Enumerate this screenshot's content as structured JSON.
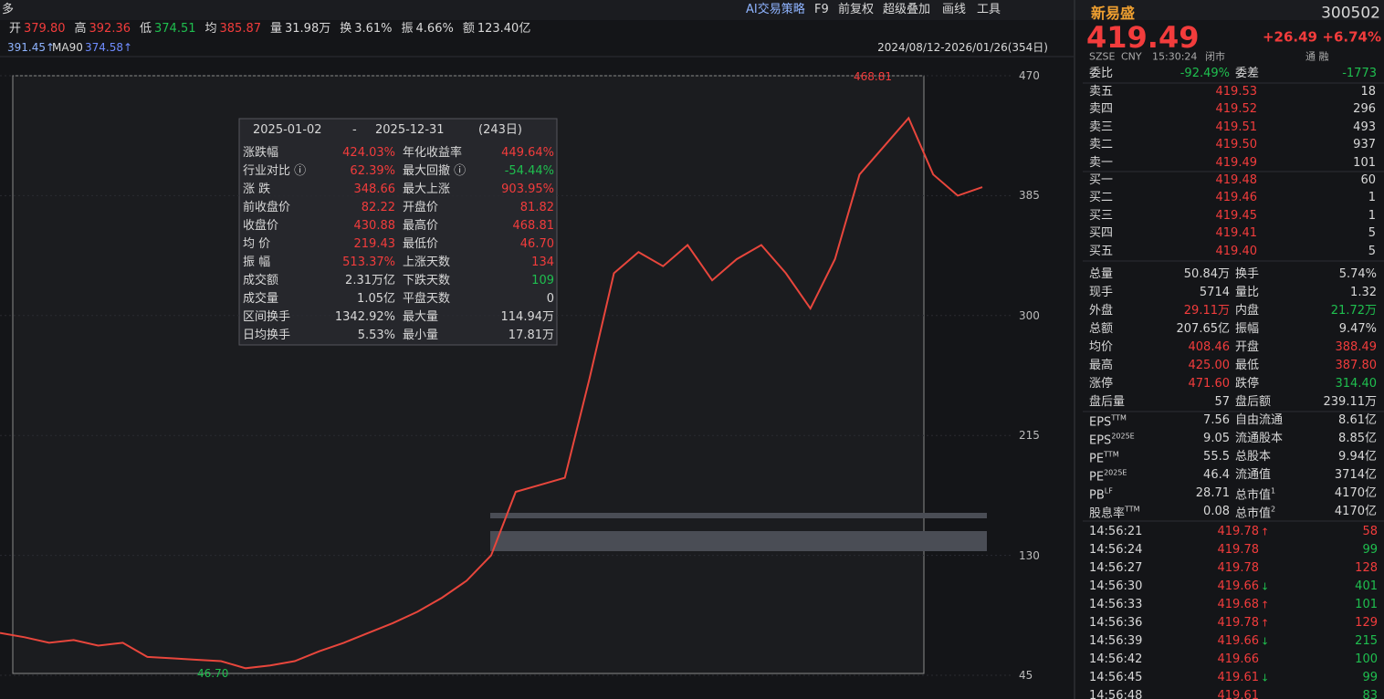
{
  "toolbar": {
    "left": "多",
    "buttons": [
      "AI交易策略",
      "F9",
      "前复权",
      "超级叠加",
      "画线",
      "工具"
    ]
  },
  "quote_bar": [
    {
      "label": "开",
      "value": "379.80",
      "color": "#f23c3c"
    },
    {
      "label": "高",
      "value": "392.36",
      "color": "#f23c3c"
    },
    {
      "label": "低",
      "value": "374.51",
      "color": "#1fbf4f"
    },
    {
      "label": "均",
      "value": "385.87",
      "color": "#f23c3c"
    },
    {
      "label": "量",
      "value": "31.98万"
    },
    {
      "label": "换",
      "value": "3.61%"
    },
    {
      "label": "振",
      "value": "4.66%"
    },
    {
      "label": "额",
      "value": "123.40亿"
    }
  ],
  "ma_bar": {
    "ma_prev": "391.45↑",
    "ma90_label": "MA90",
    "ma90": "374.58↑",
    "range": "2024/08/12-2026/01/26(354日)"
  },
  "price_chart": {
    "ylim": [
      45,
      470
    ],
    "yticks": [
      470,
      385,
      300,
      215,
      130,
      45
    ],
    "high_label": "468.81",
    "low_label": "46.70",
    "closes": [
      75,
      72,
      68,
      70,
      66,
      68,
      58,
      57,
      56,
      55,
      50,
      52,
      55,
      62,
      68,
      75,
      82,
      90,
      100,
      112,
      130,
      175,
      180,
      185,
      255,
      330,
      345,
      335,
      350,
      325,
      340,
      350,
      330,
      305,
      340,
      400,
      420,
      440,
      400,
      385,
      391
    ]
  },
  "interval_stats": {
    "start": "2025-01-02",
    "sep": "-",
    "end": "2025-12-31",
    "days": "(243日)",
    "rows": [
      [
        {
          "text": "涨跌幅"
        },
        {
          "text": "424.03%",
          "color": "#f23c3c"
        },
        {
          "text": "年化收益率"
        },
        {
          "text": "449.64%",
          "color": "#f23c3c"
        }
      ],
      [
        {
          "text": "行业对比 ⓘ"
        },
        {
          "text": "62.39%",
          "color": "#f23c3c"
        },
        {
          "text": "最大回撤 ⓘ"
        },
        {
          "text": "-54.44%",
          "color": "#1fbf4f"
        }
      ],
      [
        {
          "text": "涨 跌"
        },
        {
          "text": "348.66",
          "color": "#f23c3c"
        },
        {
          "text": "最大上涨"
        },
        {
          "text": "903.95%",
          "color": "#f23c3c"
        }
      ],
      [
        {
          "text": "前收盘价"
        },
        {
          "text": "82.22",
          "color": "#f23c3c"
        },
        {
          "text": "开盘价"
        },
        {
          "text": "81.82",
          "color": "#f23c3c"
        }
      ],
      [
        {
          "text": "收盘价"
        },
        {
          "text": "430.88",
          "color": "#f23c3c"
        },
        {
          "text": "最高价"
        },
        {
          "text": "468.81",
          "color": "#f23c3c"
        }
      ],
      [
        {
          "text": "均 价"
        },
        {
          "text": "219.43",
          "color": "#f23c3c"
        },
        {
          "text": "最低价"
        },
        {
          "text": "46.70",
          "color": "#f23c3c"
        }
      ],
      [
        {
          "text": "振 幅"
        },
        {
          "text": "513.37%",
          "color": "#f23c3c"
        },
        {
          "text": "上涨天数"
        },
        {
          "text": "134",
          "color": "#f23c3c"
        }
      ],
      [
        {
          "text": "成交额"
        },
        {
          "text": "2.31万亿"
        },
        {
          "text": "下跌天数"
        },
        {
          "text": "109",
          "color": "#1fbf4f"
        }
      ],
      [
        {
          "text": "成交量"
        },
        {
          "text": "1.05亿"
        },
        {
          "text": "平盘天数"
        },
        {
          "text": "0"
        }
      ],
      [
        {
          "text": "区间换手"
        },
        {
          "text": "1342.92%"
        },
        {
          "text": "最大量"
        },
        {
          "text": "114.94万"
        }
      ],
      [
        {
          "text": "日均换手"
        },
        {
          "text": "5.53%"
        },
        {
          "text": "最小量"
        },
        {
          "text": "17.81万"
        }
      ]
    ]
  },
  "quote": {
    "name": "新易盛",
    "code": "300502",
    "price": "419.49",
    "change": "+26.49",
    "change_pct": "+6.74%",
    "exchange": "SZSE",
    "currency": "CNY",
    "time": "15:30:24",
    "status": "闭市",
    "flags": "通 融",
    "ratio": [
      {
        "text": "委比"
      },
      {
        "text": "-92.49%",
        "color": "#1fbf4f"
      },
      {
        "text": "委差"
      },
      {
        "text": "-1773",
        "color": "#1fbf4f"
      }
    ],
    "book": [
      [
        "卖五",
        "419.53",
        "18"
      ],
      [
        "卖四",
        "419.52",
        "296"
      ],
      [
        "卖三",
        "419.51",
        "493"
      ],
      [
        "卖二",
        "419.50",
        "937"
      ],
      [
        "卖一",
        "419.49",
        "101"
      ],
      [
        "买一",
        "419.48",
        "60"
      ],
      [
        "买二",
        "419.46",
        "1"
      ],
      [
        "买三",
        "419.45",
        "1"
      ],
      [
        "买四",
        "419.41",
        "5"
      ],
      [
        "买五",
        "419.40",
        "5"
      ]
    ],
    "stats": [
      [
        {
          "text": "总量"
        },
        {
          "text": "50.84万"
        },
        {
          "text": "换手"
        },
        {
          "text": "5.74%"
        }
      ],
      [
        {
          "text": "现手"
        },
        {
          "text": "5714"
        },
        {
          "text": "量比"
        },
        {
          "text": "1.32"
        }
      ],
      [
        {
          "text": "外盘"
        },
        {
          "text": "29.11万",
          "color": "#f23c3c"
        },
        {
          "text": "内盘"
        },
        {
          "text": "21.72万",
          "color": "#1fbf4f"
        }
      ],
      [
        {
          "text": "总额"
        },
        {
          "text": "207.65亿"
        },
        {
          "text": "振幅"
        },
        {
          "text": "9.47%"
        }
      ],
      [
        {
          "text": "均价"
        },
        {
          "text": "408.46",
          "color": "#f23c3c"
        },
        {
          "text": "开盘"
        },
        {
          "text": "388.49",
          "color": "#f23c3c"
        }
      ],
      [
        {
          "text": "最高"
        },
        {
          "text": "425.00",
          "color": "#f23c3c"
        },
        {
          "text": "最低"
        },
        {
          "text": "387.80",
          "color": "#f23c3c"
        }
      ],
      [
        {
          "text": "涨停"
        },
        {
          "text": "471.60",
          "color": "#f23c3c"
        },
        {
          "text": "跌停"
        },
        {
          "text": "314.40",
          "color": "#1fbf4f"
        }
      ],
      [
        {
          "text": "盘后量"
        },
        {
          "text": "57"
        },
        {
          "text": "盘后额"
        },
        {
          "text": "239.11万"
        }
      ]
    ],
    "fundamentals": [
      [
        {
          "text": "EPS",
          "sup": "TTM"
        },
        {
          "text": "7.56"
        },
        {
          "text": "自由流通"
        },
        {
          "text": "8.61亿"
        }
      ],
      [
        {
          "text": "EPS",
          "sup": "2025E"
        },
        {
          "text": "9.05"
        },
        {
          "text": "流通股本"
        },
        {
          "text": "8.85亿"
        }
      ],
      [
        {
          "text": "PE",
          "sup": "TTM"
        },
        {
          "text": "55.5"
        },
        {
          "text": "总股本"
        },
        {
          "text": "9.94亿"
        }
      ],
      [
        {
          "text": "PE",
          "sup": "2025E"
        },
        {
          "text": "46.4"
        },
        {
          "text": "流通值"
        },
        {
          "text": "3714亿"
        }
      ],
      [
        {
          "text": "PB",
          "sup": "LF"
        },
        {
          "text": "28.71"
        },
        {
          "text": "总市值",
          "sup": "1"
        },
        {
          "text": "4170亿"
        }
      ],
      [
        {
          "text": "股息率",
          "sup": "TTM"
        },
        {
          "text": "0.08"
        },
        {
          "text": "总市值",
          "sup": "2"
        },
        {
          "text": "4170亿"
        }
      ]
    ],
    "ticks": [
      {
        "time": "14:56:21",
        "price": "419.78",
        "arrow": "↑",
        "arrow_color": "#f23c3c",
        "volume": "58",
        "volume_color": "#f23c3c"
      },
      {
        "time": "14:56:24",
        "price": "419.78",
        "volume": "99",
        "volume_color": "#1fbf4f"
      },
      {
        "time": "14:56:27",
        "price": "419.78",
        "volume": "128",
        "volume_color": "#f23c3c"
      },
      {
        "time": "14:56:30",
        "price": "419.66",
        "arrow": "↓",
        "arrow_color": "#1fbf4f",
        "volume": "401",
        "volume_color": "#1fbf4f"
      },
      {
        "time": "14:56:33",
        "price": "419.68",
        "arrow": "↑",
        "arrow_color": "#f23c3c",
        "volume": "101",
        "volume_color": "#1fbf4f"
      },
      {
        "time": "14:56:36",
        "price": "419.78",
        "arrow": "↑",
        "arrow_color": "#f23c3c",
        "volume": "129",
        "volume_color": "#f23c3c"
      },
      {
        "time": "14:56:39",
        "price": "419.66",
        "arrow": "↓",
        "arrow_color": "#1fbf4f",
        "volume": "215",
        "volume_color": "#1fbf4f"
      },
      {
        "time": "14:56:42",
        "price": "419.66",
        "volume": "100",
        "volume_color": "#1fbf4f"
      },
      {
        "time": "14:56:45",
        "price": "419.61",
        "arrow": "↓",
        "arrow_color": "#1fbf4f",
        "volume": "99",
        "volume_color": "#1fbf4f"
      },
      {
        "time": "14:56:48",
        "price": "419.61",
        "volume": "83",
        "volume_color": "#1fbf4f"
      }
    ]
  }
}
